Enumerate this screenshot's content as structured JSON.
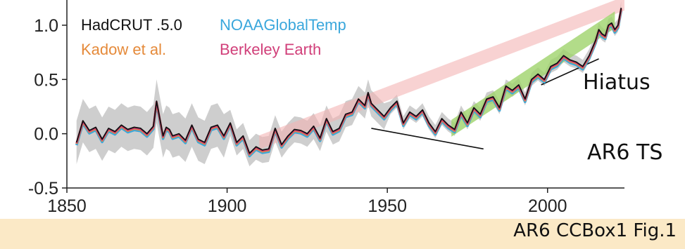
{
  "chart_data": {
    "type": "line",
    "xlim": [
      1850,
      2024
    ],
    "ylim": [
      -0.5,
      1.2
    ],
    "x_ticks": [
      "1850",
      "1900",
      "1950",
      "2000"
    ],
    "y_ticks": [
      "-0.5",
      "0.0",
      "0.5",
      "1.0"
    ],
    "legend": [
      {
        "label": "HadCRUT .5.0",
        "color": "#111111"
      },
      {
        "label": "NOAAGlobalTemp",
        "color": "#3aa7dc"
      },
      {
        "label": "Kadow et al.",
        "color": "#e58a3a"
      },
      {
        "label": "Berkeley Earth",
        "color": "#d1407a"
      }
    ],
    "series": [
      {
        "name": "HadCRUT .5.0",
        "color": "#111111",
        "x": [
          1853,
          1855,
          1857,
          1859,
          1861,
          1863,
          1865,
          1867,
          1869,
          1871,
          1873,
          1875,
          1877,
          1878,
          1880,
          1881,
          1882,
          1883,
          1885,
          1887,
          1889,
          1891,
          1893,
          1895,
          1897,
          1899,
          1901,
          1903,
          1905,
          1907,
          1909,
          1911,
          1913,
          1915,
          1917,
          1919,
          1921,
          1923,
          1925,
          1927,
          1929,
          1931,
          1933,
          1935,
          1937,
          1939,
          1941,
          1943,
          1944,
          1945,
          1947,
          1949,
          1951,
          1953,
          1955,
          1957,
          1959,
          1961,
          1963,
          1965,
          1967,
          1969,
          1971,
          1973,
          1975,
          1977,
          1979,
          1981,
          1983,
          1985,
          1987,
          1989,
          1991,
          1993,
          1995,
          1997,
          1999,
          2001,
          2003,
          2005,
          2007,
          2009,
          2011,
          2013,
          2015,
          2016,
          2017,
          2018,
          2019,
          2020,
          2021,
          2022,
          2023
        ],
        "y": [
          -0.08,
          0.12,
          0.03,
          0.06,
          -0.05,
          0.05,
          0.02,
          0.08,
          0.04,
          0.06,
          0.05,
          0.0,
          0.07,
          0.3,
          -0.02,
          0.06,
          0.04,
          -0.02,
          0.0,
          -0.06,
          0.08,
          -0.05,
          -0.08,
          0.06,
          0.08,
          -0.02,
          0.1,
          -0.08,
          -0.02,
          -0.18,
          -0.12,
          -0.15,
          -0.14,
          0.05,
          -0.1,
          -0.02,
          0.04,
          0.03,
          0.0,
          0.07,
          -0.04,
          0.14,
          0.02,
          0.05,
          0.18,
          0.2,
          0.32,
          0.26,
          0.38,
          0.28,
          0.22,
          0.16,
          0.24,
          0.3,
          0.1,
          0.2,
          0.16,
          0.22,
          0.1,
          0.02,
          0.14,
          0.08,
          0.04,
          0.2,
          0.1,
          0.24,
          0.18,
          0.32,
          0.34,
          0.24,
          0.44,
          0.4,
          0.45,
          0.32,
          0.5,
          0.55,
          0.5,
          0.62,
          0.65,
          0.72,
          0.68,
          0.66,
          0.62,
          0.72,
          0.86,
          0.96,
          0.92,
          0.9,
          1.0,
          1.02,
          0.96,
          1.0,
          1.16
        ]
      }
    ]
  },
  "annotations": {
    "hiatus": "Hiatus",
    "ar6_ts": "AR6 TS"
  },
  "caption": "AR6 CCBox1 Fig.1"
}
